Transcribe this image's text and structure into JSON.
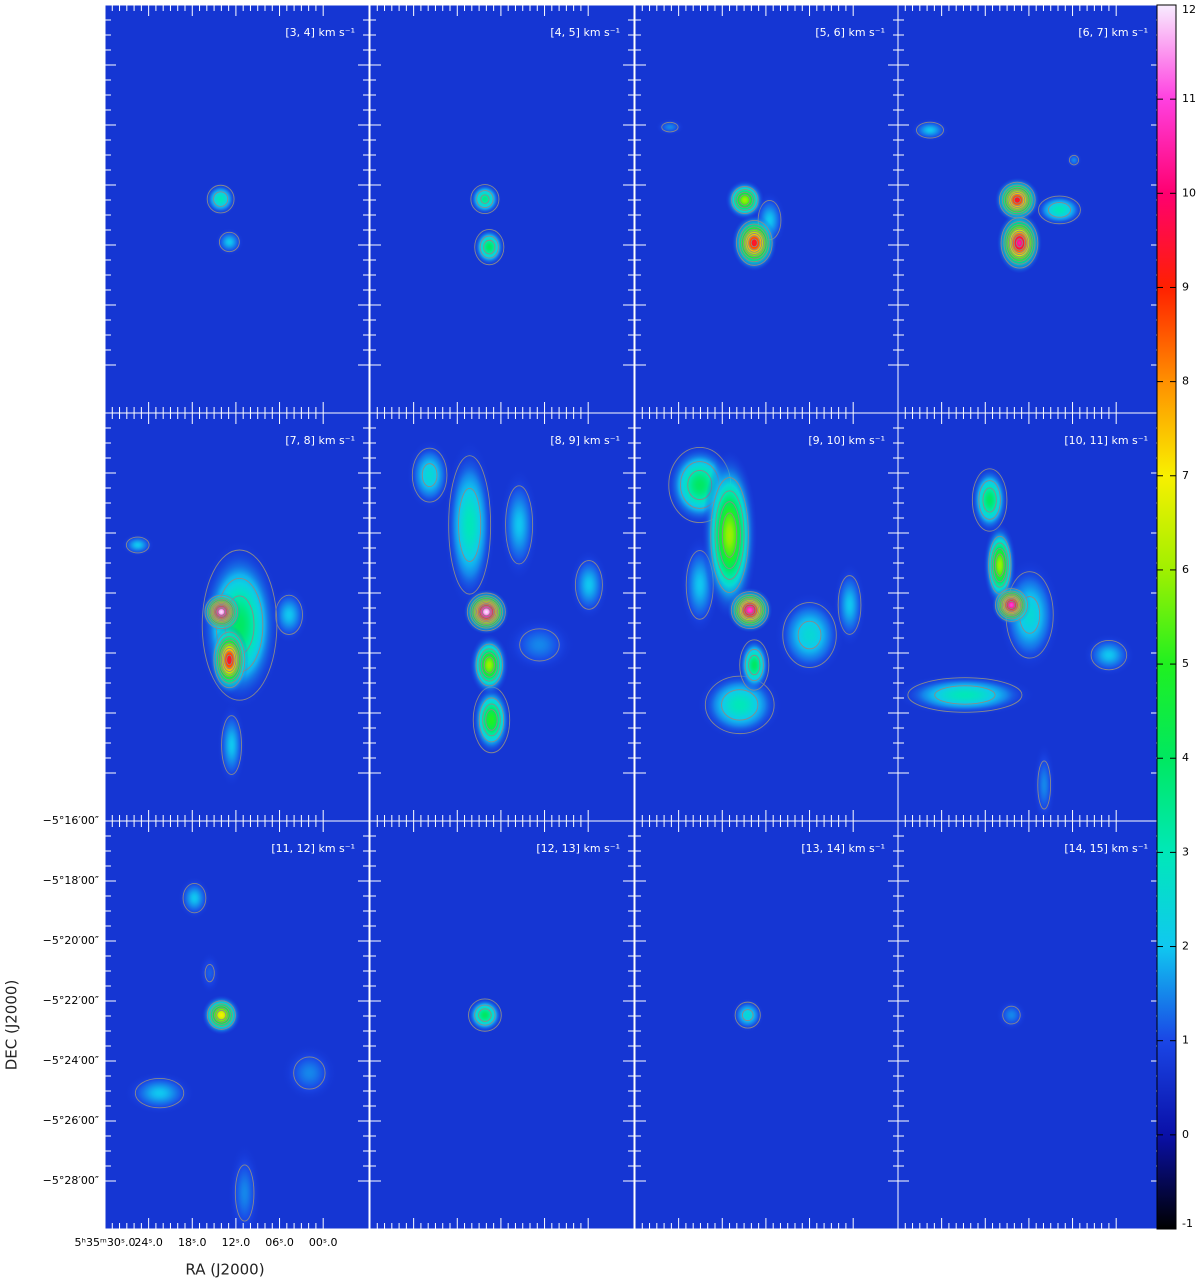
{
  "chart_data": {
    "type": "channel-map",
    "x_label": "RA (J2000)",
    "y_label": "DEC (J2000)",
    "xlim": [
      30,
      -6.3
    ],
    "ylim": [
      -29.6,
      -16
    ],
    "xticks": [
      {
        "value": 30,
        "label": "5ʰ35ᵐ30ˢ.0"
      },
      {
        "value": 24,
        "label": "24ˢ.0"
      },
      {
        "value": 18,
        "label": "18ˢ.0"
      },
      {
        "value": 12,
        "label": "12ˢ.0"
      },
      {
        "value": 6,
        "label": "06ˢ.0"
      },
      {
        "value": 0,
        "label": "00ˢ.0"
      }
    ],
    "yticks": [
      {
        "value": -16,
        "label": "−5°16′00″"
      },
      {
        "value": -18,
        "label": "−5°18′00″"
      },
      {
        "value": -20,
        "label": "−5°20′00″"
      },
      {
        "value": -22,
        "label": "−5°22′00″"
      },
      {
        "value": -24,
        "label": "−5°24′00″"
      },
      {
        "value": -26,
        "label": "−5°26′00″"
      },
      {
        "value": -28,
        "label": "−5°28′00″"
      }
    ],
    "background_level": 0.7,
    "contour_color": "#8a8a8a",
    "tick_color": "#ffffff",
    "colorbar": {
      "lim": [
        -1,
        12
      ],
      "ticks": [
        -1,
        0,
        1,
        2,
        3,
        4,
        5,
        6,
        7,
        8,
        9,
        10,
        11,
        12
      ],
      "colors": [
        "#000000",
        "#0a10a8",
        "#1a46e6",
        "#10c8f0",
        "#00e8b8",
        "#00e860",
        "#20f020",
        "#a0f000",
        "#f8f000",
        "#ff9000",
        "#ff2000",
        "#ff0070",
        "#ff40e0",
        "#f8ecff"
      ]
    },
    "panels": [
      {
        "title": "[3, 4] km s⁻¹",
        "sources": [
          {
            "x": 12.9,
            "y": -23.9,
            "value": 2,
            "width": 1.4,
            "height": 0.33
          },
          {
            "x": 14.1,
            "y": -22.47,
            "value": 3,
            "width": 1.6,
            "height": 0.4
          }
        ]
      },
      {
        "title": "[4, 5] km s⁻¹",
        "sources": [
          {
            "x": 14.2,
            "y": -22.47,
            "value": 3.5,
            "width": 1.6,
            "height": 0.4
          },
          {
            "x": 13.6,
            "y": -24.07,
            "value": 4,
            "width": 1.6,
            "height": 0.47
          }
        ]
      },
      {
        "title": "[5, 6] km s⁻¹",
        "sources": [
          {
            "x": 25.2,
            "y": -20.07,
            "value": 1.5,
            "width": 1.4,
            "height": 0.2
          },
          {
            "x": 11.5,
            "y": -23.17,
            "value": 2,
            "width": 1.6,
            "height": 0.67
          },
          {
            "x": 14.9,
            "y": -22.5,
            "value": 6,
            "width": 1.9,
            "height": 0.47
          },
          {
            "x": 13.6,
            "y": -23.93,
            "value": 9.5,
            "width": 2.2,
            "height": 0.67
          }
        ]
      },
      {
        "title": "[6, 7] km s⁻¹",
        "sources": [
          {
            "x": 5.8,
            "y": -21.17,
            "value": 1.5,
            "width": 0.8,
            "height": 0.2
          },
          {
            "x": 25.6,
            "y": -20.17,
            "value": 2,
            "width": 1.9,
            "height": 0.27
          },
          {
            "x": 7.8,
            "y": -22.83,
            "value": 3,
            "width": 2.5,
            "height": 0.4
          },
          {
            "x": 13.6,
            "y": -22.5,
            "value": 9.5,
            "width": 2.2,
            "height": 0.53
          },
          {
            "x": 13.3,
            "y": -23.93,
            "value": 10.5,
            "width": 2.2,
            "height": 0.73
          }
        ]
      },
      {
        "title": "[7, 8] km s⁻¹",
        "sources": [
          {
            "x": 12.6,
            "y": -27.07,
            "value": 2,
            "width": 1.4,
            "height": 1.0
          },
          {
            "x": 25.5,
            "y": -20.4,
            "value": 2,
            "width": 1.6,
            "height": 0.27
          },
          {
            "x": 4.7,
            "y": -22.73,
            "value": 2,
            "width": 1.9,
            "height": 0.67
          },
          {
            "x": 11.5,
            "y": -23.07,
            "value": 4,
            "width": 4.1,
            "height": 2.0
          },
          {
            "x": 12.9,
            "y": -24.23,
            "value": 9.5,
            "width": 1.9,
            "height": 0.83
          },
          {
            "x": 14.0,
            "y": -22.63,
            "value": 12,
            "width": 1.9,
            "height": 0.47
          }
        ]
      },
      {
        "title": "[8, 9] km s⁻¹",
        "sources": [
          {
            "x": 6.7,
            "y": -23.73,
            "value": 1.5,
            "width": 3.4,
            "height": 0.67
          },
          {
            "x": -0.1,
            "y": -21.73,
            "value": 2,
            "width": 1.9,
            "height": 0.83
          },
          {
            "x": 9.5,
            "y": -19.73,
            "value": 2,
            "width": 1.9,
            "height": 1.33
          },
          {
            "x": 21.8,
            "y": -18.07,
            "value": 2.5,
            "width": 2.2,
            "height": 0.83
          },
          {
            "x": 16.3,
            "y": -19.73,
            "value": 3,
            "width": 2.5,
            "height": 2.0
          },
          {
            "x": 13.3,
            "y": -26.23,
            "value": 5,
            "width": 1.9,
            "height": 0.83
          },
          {
            "x": 13.6,
            "y": -24.4,
            "value": 6,
            "width": 1.9,
            "height": 0.73
          },
          {
            "x": 14.0,
            "y": -22.63,
            "value": 12,
            "width": 2.2,
            "height": 0.53
          }
        ]
      },
      {
        "title": "[9, 10] km s⁻¹",
        "sources": [
          {
            "x": 0.5,
            "y": -22.4,
            "value": 2,
            "width": 1.6,
            "height": 1.0
          },
          {
            "x": 21.1,
            "y": -21.73,
            "value": 2,
            "width": 1.9,
            "height": 1.17
          },
          {
            "x": 6.0,
            "y": -23.4,
            "value": 2.5,
            "width": 3.4,
            "height": 1.0
          },
          {
            "x": 15.6,
            "y": -25.73,
            "value": 3,
            "width": 4.1,
            "height": 0.83
          },
          {
            "x": 21.1,
            "y": -18.4,
            "value": 4,
            "width": 3.4,
            "height": 1.0
          },
          {
            "x": 13.6,
            "y": -24.4,
            "value": 4,
            "width": 1.6,
            "height": 0.67
          },
          {
            "x": 17.0,
            "y": -20.07,
            "value": 6,
            "width": 2.7,
            "height": 2.0
          },
          {
            "x": 14.2,
            "y": -22.57,
            "value": 11,
            "width": 2.2,
            "height": 0.53
          }
        ]
      },
      {
        "title": "[10, 11] km s⁻¹",
        "sources": [
          {
            "x": 9.9,
            "y": -28.4,
            "value": 1.5,
            "width": 1.1,
            "height": 1.0
          },
          {
            "x": 1.0,
            "y": -24.07,
            "value": 2,
            "width": 2.5,
            "height": 0.5
          },
          {
            "x": 11.9,
            "y": -22.73,
            "value": 2.5,
            "width": 3.0,
            "height": 1.33
          },
          {
            "x": 20.8,
            "y": -25.4,
            "value": 3,
            "width": 6.8,
            "height": 0.5
          },
          {
            "x": 17.4,
            "y": -18.9,
            "value": 4,
            "width": 1.9,
            "height": 0.83
          },
          {
            "x": 16.0,
            "y": -21.07,
            "value": 6,
            "width": 1.6,
            "height": 1.0
          },
          {
            "x": 14.4,
            "y": -22.4,
            "value": 11,
            "width": 1.9,
            "height": 0.47
          }
        ]
      },
      {
        "title": "[11, 12] km s⁻¹",
        "sources": [
          {
            "x": 15.6,
            "y": -21.07,
            "value": 1.2,
            "width": 1.1,
            "height": 0.5
          },
          {
            "x": 1.9,
            "y": -24.4,
            "value": 1.5,
            "width": 2.7,
            "height": 0.67
          },
          {
            "x": 10.8,
            "y": -28.4,
            "value": 1.5,
            "width": 1.6,
            "height": 1.17
          },
          {
            "x": 22.5,
            "y": -25.07,
            "value": 2,
            "width": 3.4,
            "height": 0.5
          },
          {
            "x": 17.7,
            "y": -18.57,
            "value": 2,
            "width": 1.6,
            "height": 0.5
          },
          {
            "x": 14.0,
            "y": -22.47,
            "value": 7,
            "width": 1.9,
            "height": 0.47
          }
        ]
      },
      {
        "title": "[12, 13] km s⁻¹",
        "sources": [
          {
            "x": 14.2,
            "y": -22.47,
            "value": 4,
            "width": 1.8,
            "height": 0.43
          }
        ]
      },
      {
        "title": "[13, 14] km s⁻¹",
        "sources": [
          {
            "x": 14.5,
            "y": -22.47,
            "value": 2.5,
            "width": 1.6,
            "height": 0.4
          }
        ]
      },
      {
        "title": "[14, 15] km s⁻¹",
        "sources": [
          {
            "x": 14.4,
            "y": -22.47,
            "value": 1.5,
            "width": 1.5,
            "height": 0.37
          }
        ]
      }
    ]
  }
}
